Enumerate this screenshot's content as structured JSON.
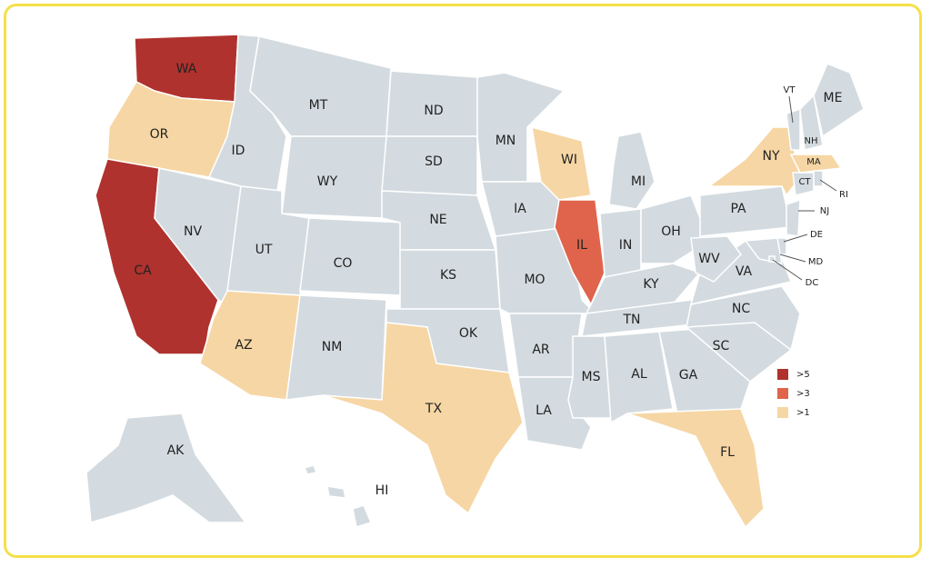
{
  "map": {
    "legend": [
      {
        "label": ">5",
        "color": "#b0322e"
      },
      {
        "label": ">3",
        "color": "#e0644b"
      },
      {
        "label": ">1",
        "color": "#f6d6a4"
      }
    ],
    "base_color": "#d3dbe0",
    "states": [
      {
        "label": "WA",
        "color": "#b0322e"
      },
      {
        "label": "OR",
        "color": "#f6d6a4"
      },
      {
        "label": "CA",
        "color": "#b0322e"
      },
      {
        "label": "NV",
        "color": "#d3dbe0"
      },
      {
        "label": "ID",
        "color": "#d3dbe0"
      },
      {
        "label": "MT",
        "color": "#d3dbe0"
      },
      {
        "label": "WY",
        "color": "#d3dbe0"
      },
      {
        "label": "UT",
        "color": "#d3dbe0"
      },
      {
        "label": "CO",
        "color": "#d3dbe0"
      },
      {
        "label": "AZ",
        "color": "#f6d6a4"
      },
      {
        "label": "NM",
        "color": "#d3dbe0"
      },
      {
        "label": "ND",
        "color": "#d3dbe0"
      },
      {
        "label": "SD",
        "color": "#d3dbe0"
      },
      {
        "label": "NE",
        "color": "#d3dbe0"
      },
      {
        "label": "KS",
        "color": "#d3dbe0"
      },
      {
        "label": "OK",
        "color": "#d3dbe0"
      },
      {
        "label": "TX",
        "color": "#f6d6a4"
      },
      {
        "label": "MN",
        "color": "#d3dbe0"
      },
      {
        "label": "IA",
        "color": "#d3dbe0"
      },
      {
        "label": "MO",
        "color": "#d3dbe0"
      },
      {
        "label": "AR",
        "color": "#d3dbe0"
      },
      {
        "label": "LA",
        "color": "#d3dbe0"
      },
      {
        "label": "WI",
        "color": "#f6d6a4"
      },
      {
        "label": "IL",
        "color": "#e0644b"
      },
      {
        "label": "MI",
        "color": "#d3dbe0"
      },
      {
        "label": "IN",
        "color": "#d3dbe0"
      },
      {
        "label": "OH",
        "color": "#d3dbe0"
      },
      {
        "label": "KY",
        "color": "#d3dbe0"
      },
      {
        "label": "TN",
        "color": "#d3dbe0"
      },
      {
        "label": "MS",
        "color": "#d3dbe0"
      },
      {
        "label": "AL",
        "color": "#d3dbe0"
      },
      {
        "label": "GA",
        "color": "#d3dbe0"
      },
      {
        "label": "FL",
        "color": "#f6d6a4"
      },
      {
        "label": "SC",
        "color": "#d3dbe0"
      },
      {
        "label": "NC",
        "color": "#d3dbe0"
      },
      {
        "label": "VA",
        "color": "#d3dbe0"
      },
      {
        "label": "WV",
        "color": "#d3dbe0"
      },
      {
        "label": "PA",
        "color": "#d3dbe0"
      },
      {
        "label": "NY",
        "color": "#f6d6a4"
      },
      {
        "label": "VT",
        "color": "#d3dbe0"
      },
      {
        "label": "NH",
        "color": "#d3dbe0"
      },
      {
        "label": "ME",
        "color": "#d3dbe0"
      },
      {
        "label": "MA",
        "color": "#f6d6a4"
      },
      {
        "label": "CT",
        "color": "#d3dbe0"
      },
      {
        "label": "RI",
        "color": "#d3dbe0"
      },
      {
        "label": "NJ",
        "color": "#d3dbe0"
      },
      {
        "label": "DE",
        "color": "#d3dbe0"
      },
      {
        "label": "MD",
        "color": "#d3dbe0"
      },
      {
        "label": "DC",
        "color": "#d3dbe0"
      },
      {
        "label": "AK",
        "color": "#d3dbe0"
      },
      {
        "label": "HI",
        "color": "#d3dbe0"
      }
    ]
  }
}
